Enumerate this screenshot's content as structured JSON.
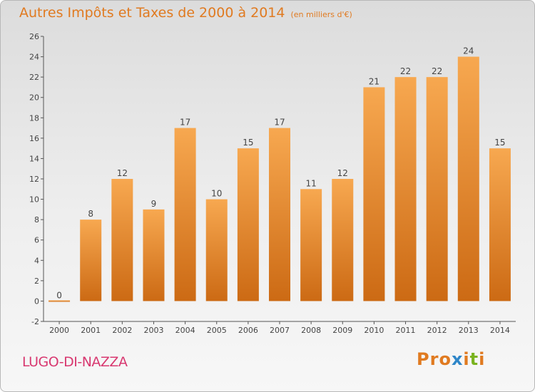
{
  "header": {
    "title": "Autres Impôts et Taxes de 2000 à 2014",
    "unit": "(en milliers d'€)"
  },
  "footer": {
    "commune": "LUGO-DI-NAZZA",
    "logo_text": "Proxiti"
  },
  "colors": {
    "bar_light": "#f7a850",
    "bar_dark": "#cc6a14",
    "title": "#e07a20",
    "commune": "#d83870",
    "logo_letters": [
      "#e07a20",
      "#e07a20",
      "#e07a20",
      "#2f86c8",
      "#e07a20",
      "#7ab320",
      "#e07a20"
    ]
  },
  "chart_data": {
    "type": "bar",
    "title": "Autres Impôts et Taxes de 2000 à 2014",
    "subtitle": "(en milliers d'€)",
    "categories": [
      "2000",
      "2001",
      "2002",
      "2003",
      "2004",
      "2005",
      "2006",
      "2007",
      "2008",
      "2009",
      "2010",
      "2011",
      "2012",
      "2013",
      "2014"
    ],
    "values": [
      0,
      8,
      12,
      9,
      17,
      10,
      15,
      17,
      11,
      12,
      21,
      22,
      22,
      24,
      15
    ],
    "ylim": [
      -2,
      26
    ],
    "yticks": [
      -2,
      0,
      2,
      4,
      6,
      8,
      10,
      12,
      14,
      16,
      18,
      20,
      22,
      24,
      26
    ],
    "xlabel": "",
    "ylabel": "",
    "grid": false,
    "legend": "none",
    "data_labels": true
  }
}
